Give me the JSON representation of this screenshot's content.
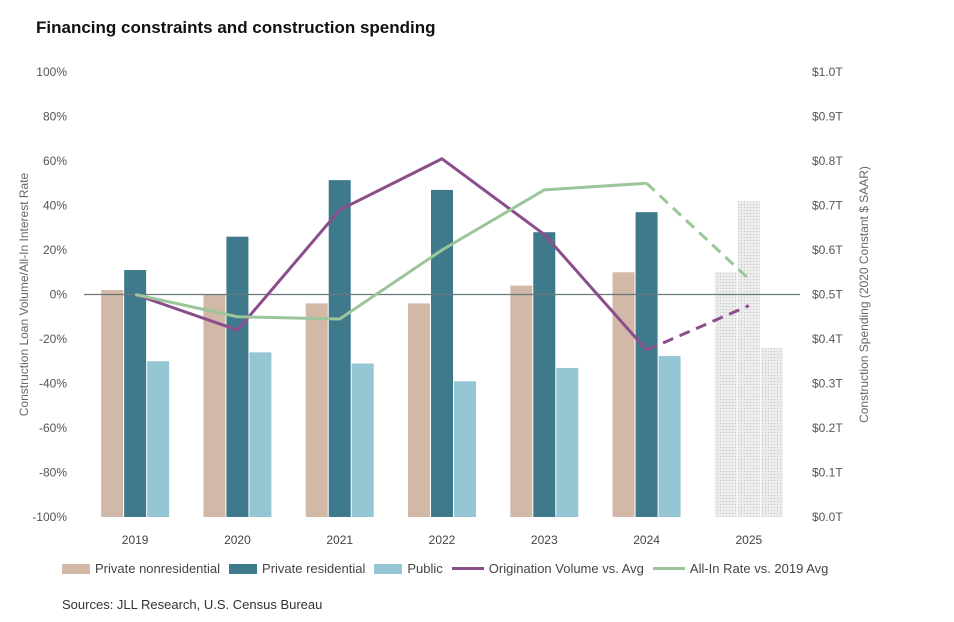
{
  "title": "Financing constraints and construction spending",
  "source": "Sources: JLL Research, U.S. Census Bureau",
  "colors": {
    "private_nonresidential": "#d2b8a7",
    "private_residential": "#3f7a8c",
    "public": "#95c6d4",
    "origination": "#8b4e8c",
    "all_in_rate": "#9cc59c",
    "projection_bar": "#e3e3e3",
    "zero_line": "#6a7a7a"
  },
  "chart_data": {
    "type": "bar",
    "categories": [
      "2019",
      "2020",
      "2021",
      "2022",
      "2023",
      "2024",
      "2025"
    ],
    "left_axis": {
      "label": "Construction Loan Volume/All-In Interest Rate",
      "ylim": [
        -100,
        100
      ],
      "ticks": [
        "100%",
        "80%",
        "60%",
        "40%",
        "20%",
        "0%",
        "-20%",
        "-40%",
        "-60%",
        "-80%",
        "-100%"
      ]
    },
    "right_axis": {
      "label": "Construction Spending (2020 Constant $ SAAR)",
      "ylim": [
        0,
        1.0
      ],
      "ticks": [
        "$1.0T",
        "$0.9T",
        "$0.8T",
        "$0.7T",
        "$0.6T",
        "$0.5T",
        "$0.4T",
        "$0.3T",
        "$0.2T",
        "$0.1T",
        "$0.0T"
      ]
    },
    "bar_series": [
      {
        "name": "Private nonresidential",
        "axis": "right",
        "values": [
          0.51,
          0.5,
          0.48,
          0.48,
          0.52,
          0.55,
          0.55
        ]
      },
      {
        "name": "Private residential",
        "axis": "right",
        "values": [
          0.555,
          0.63,
          0.757,
          0.735,
          0.64,
          0.685,
          0.71
        ]
      },
      {
        "name": "Public",
        "axis": "right",
        "values": [
          0.35,
          0.37,
          0.345,
          0.305,
          0.335,
          0.362,
          0.38
        ]
      }
    ],
    "projection_bars_from_index": 6,
    "line_series": [
      {
        "name": "Origination Volume vs. Avg",
        "axis": "left",
        "x_index": [
          0,
          1,
          2,
          3,
          4,
          5,
          6
        ],
        "values": [
          0,
          -16,
          38,
          61,
          27,
          -25,
          -5
        ],
        "dashed_from_index": 5
      },
      {
        "name": "All-In Rate vs. 2019 Avg",
        "axis": "left",
        "x_index": [
          0,
          1,
          2,
          3,
          4,
          5,
          6
        ],
        "values": [
          0,
          -10,
          -11,
          20,
          47,
          50,
          7
        ],
        "dashed_from_index": 5
      }
    ],
    "legend_position": "bottom",
    "grid": false
  }
}
